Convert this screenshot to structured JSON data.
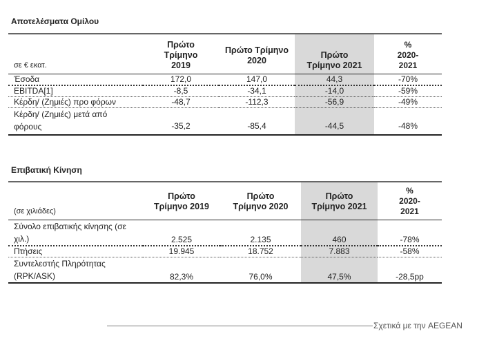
{
  "group_results": {
    "title": "Αποτελέσματα Ομίλου",
    "unit": "σε € εκατ.",
    "headers": [
      "Πρώτο Τρίμηνο 2019",
      "Πρώτο Τρίμηνο 2020",
      "Πρώτο Τρίμηνο 2021",
      "% 2020-2021"
    ],
    "rows": [
      {
        "label": "Έσοδα",
        "values": [
          "172,0",
          "147,0",
          "44,3",
          "-70%"
        ]
      },
      {
        "label": "EBITDA[1]",
        "values": [
          "-8,5",
          "-34,1",
          "-14,0",
          "-59%"
        ]
      },
      {
        "label": "Κέρδη/ (Ζημιές) προ φόρων",
        "values": [
          "-48,7",
          "-112,3",
          "-56,9",
          "-49%"
        ]
      },
      {
        "label": "Κέρδη/ (Ζημιές) μετά από φόρους",
        "values": [
          "-35,2",
          "-85,4",
          "-44,5",
          "-48%"
        ]
      }
    ]
  },
  "traffic": {
    "title": "Επιβατική Κίνηση",
    "unit": "(σε χιλιάδες)",
    "headers": [
      "Πρώτο Τρίμηνο 2019",
      "Πρώτο Τρίμηνο 2020",
      "Πρώτο Τρίμηνο 2021",
      "% 2020-2021"
    ],
    "rows": [
      {
        "label": "Σύνολο επιβατικής κίνησης (σε χιλ.)",
        "values": [
          "2.525",
          "2.135",
          "460",
          "-78%"
        ]
      },
      {
        "label": "Πτήσεις",
        "values": [
          "19.945",
          "18.752",
          "7.883",
          "-58%"
        ]
      },
      {
        "label": "Συντελεστής Πληρότητας (RPK/ASK)",
        "values": [
          "82,3%",
          "76,0%",
          "47,5%",
          "-28,5pp"
        ]
      }
    ]
  },
  "footer": {
    "link": "Σχετικά με την AEGEAN"
  }
}
